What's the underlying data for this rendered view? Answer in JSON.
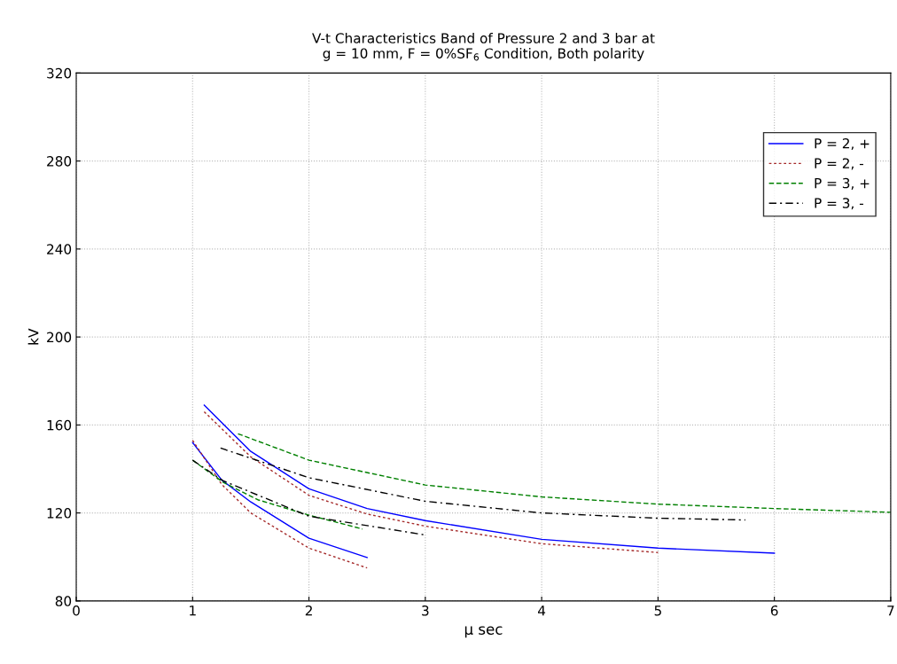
{
  "chart_data": {
    "type": "line",
    "title": "V-t Characteristics Band of Pressure 2 and 3 bar at\ng = 10 mm, F = 0%SF$_{6}$ Condition, Both polarity",
    "xlabel": "μ sec",
    "ylabel": "kV",
    "xlim": [
      0,
      7
    ],
    "xticks": [
      0,
      1,
      2,
      3,
      4,
      5,
      6,
      7
    ],
    "ylim": [
      80,
      320
    ],
    "yticks": [
      80,
      120,
      160,
      200,
      240,
      280,
      320
    ],
    "grid": true,
    "legend": "top right",
    "marker": "none",
    "series": [
      {
        "name": "P = 2, +",
        "color": "#0000ff",
        "line_style": "solid",
        "x": [
          1.1,
          1.5,
          2,
          2.5,
          3,
          4,
          5,
          6
        ],
        "values": [
          169,
          148,
          131,
          122,
          116.5,
          108,
          104,
          101.7
        ]
      },
      {
        "color": "#0000ff",
        "line_style": "solid",
        "x": [
          1,
          1.25,
          1.5,
          2,
          2.5
        ],
        "values": [
          152,
          135,
          125,
          108.5,
          99.7
        ]
      },
      {
        "name": "P = 2, -",
        "color": "#a52a2a",
        "line_style": "dotted",
        "x": [
          1.1,
          1.5,
          2,
          2.5,
          3,
          4,
          5
        ],
        "values": [
          166,
          145.5,
          128,
          119.5,
          114,
          106,
          102
        ]
      },
      {
        "color": "#a52a2a",
        "line_style": "dotted",
        "x": [
          1,
          1.25,
          1.5,
          2,
          2.5
        ],
        "values": [
          153,
          133,
          120,
          104,
          95
        ]
      },
      {
        "name": "P = 3, +",
        "color": "#008000",
        "line_style": "dashed",
        "x": [
          1.39,
          2,
          3,
          4,
          5,
          6,
          7
        ],
        "values": [
          156,
          144,
          132.7,
          127.3,
          124,
          122,
          120.3
        ]
      },
      {
        "color": "#008000",
        "line_style": "dashed",
        "x": [
          1,
          1.26,
          1.56,
          2,
          2.46
        ],
        "values": [
          144,
          134,
          126,
          119,
          112.7
        ]
      },
      {
        "name": "P = 3, -",
        "color": "#000000",
        "line_style": "dashdot",
        "x": [
          1.24,
          2,
          3,
          4,
          5,
          5.75
        ],
        "values": [
          149.5,
          136,
          125.3,
          120,
          117.6,
          116.8
        ]
      },
      {
        "color": "#000000",
        "line_style": "dashdot",
        "x": [
          1,
          1.26,
          2,
          3
        ],
        "values": [
          144,
          134.7,
          118.5,
          110
        ]
      }
    ]
  }
}
